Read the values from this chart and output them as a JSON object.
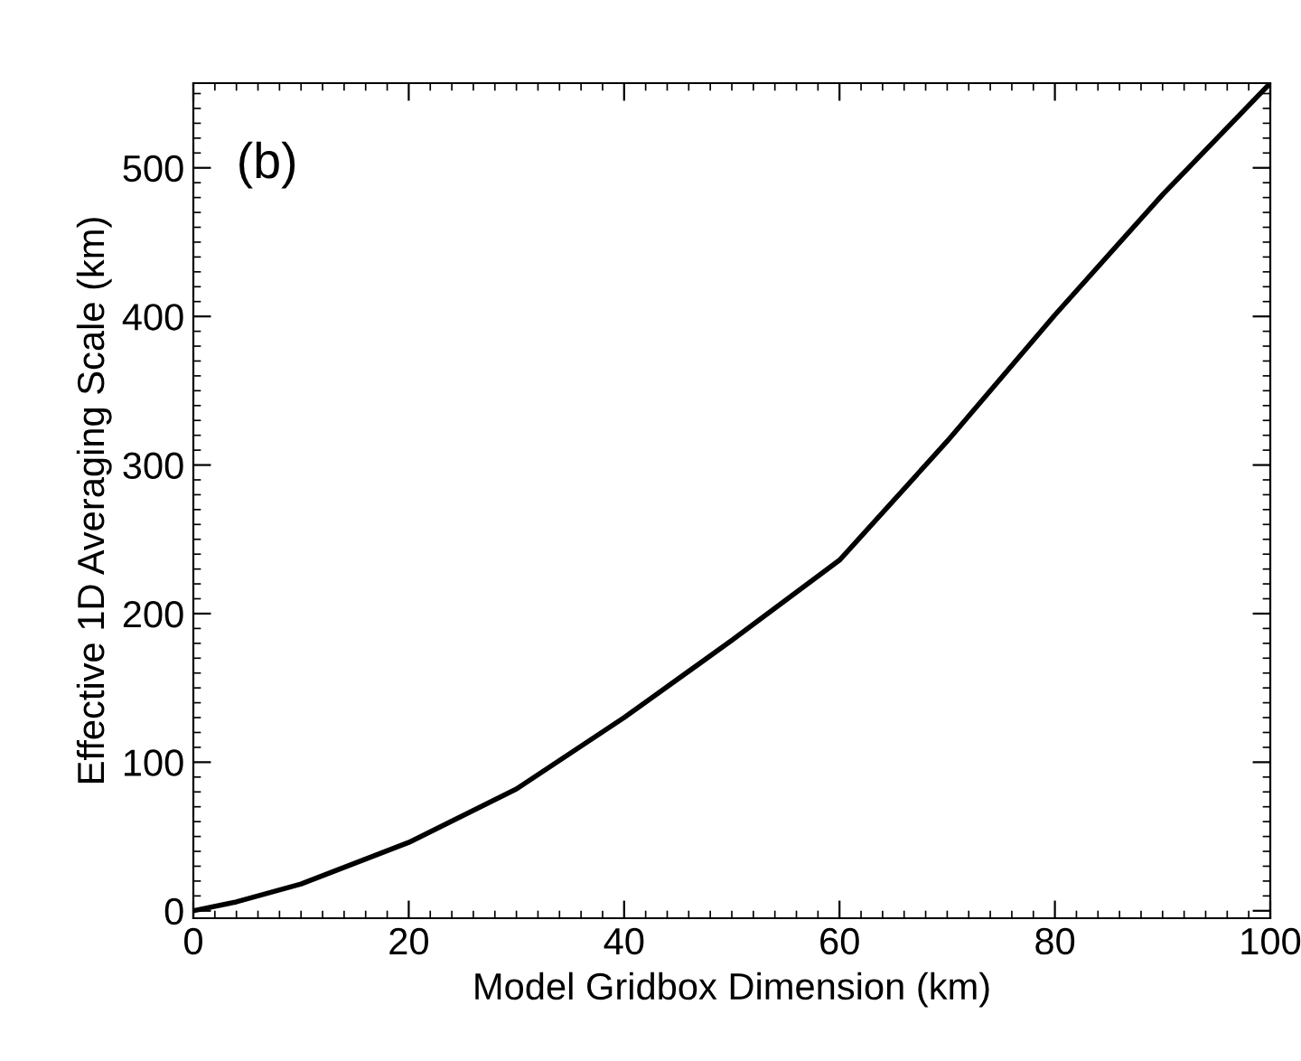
{
  "chart_data": {
    "type": "line",
    "xlabel": "Model Gridbox Dimension (km)",
    "ylabel": "Effective 1D Averaging Scale (km)",
    "annotations": [
      "(b)"
    ],
    "x": [
      0,
      4,
      10,
      20,
      30,
      40,
      50,
      60,
      70,
      80,
      90,
      100
    ],
    "series": [
      {
        "color": "#000000",
        "values": [
          0,
          6,
          18,
          46,
          82,
          130,
          182,
          236,
          316,
          401,
          482,
          557
        ]
      }
    ],
    "xlim": [
      0,
      100
    ],
    "ylim": [
      -5,
      557
    ],
    "xticks": [
      0,
      20,
      40,
      60,
      80,
      100
    ],
    "yticks": [
      0,
      100,
      200,
      300,
      400,
      500
    ],
    "grid": false,
    "legend": false,
    "marker": "none",
    "line_style": "solid"
  }
}
